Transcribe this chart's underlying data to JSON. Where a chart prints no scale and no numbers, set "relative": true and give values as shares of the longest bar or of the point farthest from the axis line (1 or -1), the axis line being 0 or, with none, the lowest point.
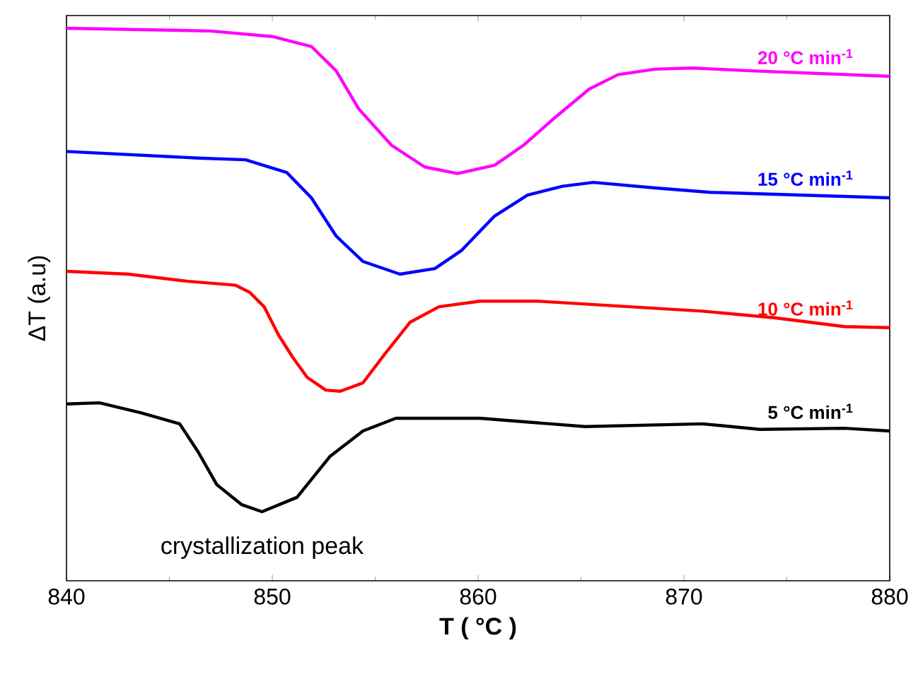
{
  "chart_data": {
    "type": "line",
    "relative": true,
    "xlabel": "T ( °C )",
    "ylabel": "ΔT (a.u)",
    "xlim": [
      840,
      880
    ],
    "xticks": [
      840,
      850,
      860,
      870,
      880
    ],
    "legend": false,
    "marker": "none",
    "line_style": "solid",
    "annotations": [
      {
        "text": "crystallization peak",
        "x": 849.5,
        "y": 0.125
      }
    ],
    "series": [
      {
        "name": "20 °C min$^{-1}$",
        "color": "#ff00ff",
        "x": [
          840,
          847,
          850,
          851.9,
          853.1,
          854.2,
          855.8,
          857.4,
          859.0,
          860.8,
          862.2,
          863.6,
          865.4,
          866.8,
          868.6,
          870.4,
          873.2,
          880
        ],
        "values": [
          1.0,
          0.995,
          0.985,
          0.967,
          0.923,
          0.854,
          0.788,
          0.749,
          0.737,
          0.752,
          0.788,
          0.834,
          0.89,
          0.916,
          0.926,
          0.928,
          0.923,
          0.913
        ]
      },
      {
        "name": "15 °C min$^{-1}$",
        "color": "#0000ff",
        "x": [
          840,
          846.4,
          848.7,
          850.7,
          851.9,
          853.1,
          854.4,
          856.2,
          857.9,
          859.2,
          860.8,
          862.4,
          864.1,
          865.6,
          868.6,
          871.3,
          880
        ],
        "values": [
          0.777,
          0.765,
          0.762,
          0.739,
          0.693,
          0.624,
          0.578,
          0.555,
          0.565,
          0.598,
          0.66,
          0.698,
          0.714,
          0.721,
          0.711,
          0.703,
          0.693
        ]
      },
      {
        "name": "10 °C min$^{-1}$",
        "color": "#ff0000",
        "x": [
          840,
          843,
          845.9,
          848.2,
          848.9,
          849.6,
          850.3,
          851.0,
          851.7,
          852.6,
          853.3,
          854.4,
          855.5,
          856.7,
          858.1,
          860.1,
          862.9,
          870.9,
          874.4,
          877.8,
          880
        ],
        "values": [
          0.56,
          0.555,
          0.542,
          0.535,
          0.522,
          0.496,
          0.445,
          0.404,
          0.368,
          0.345,
          0.343,
          0.358,
          0.412,
          0.468,
          0.496,
          0.506,
          0.506,
          0.488,
          0.476,
          0.46,
          0.458
        ]
      },
      {
        "name": "5 °C min$^{-1}$",
        "color": "#000000",
        "x": [
          840,
          841.6,
          843.6,
          845.5,
          846.4,
          847.3,
          848.5,
          849.5,
          851.2,
          852.8,
          854.4,
          856.0,
          860.1,
          865.2,
          870.9,
          873.7,
          877.8,
          880
        ],
        "values": [
          0.32,
          0.322,
          0.304,
          0.284,
          0.233,
          0.174,
          0.138,
          0.125,
          0.151,
          0.225,
          0.271,
          0.294,
          0.294,
          0.279,
          0.284,
          0.274,
          0.276,
          0.271
        ]
      }
    ]
  }
}
